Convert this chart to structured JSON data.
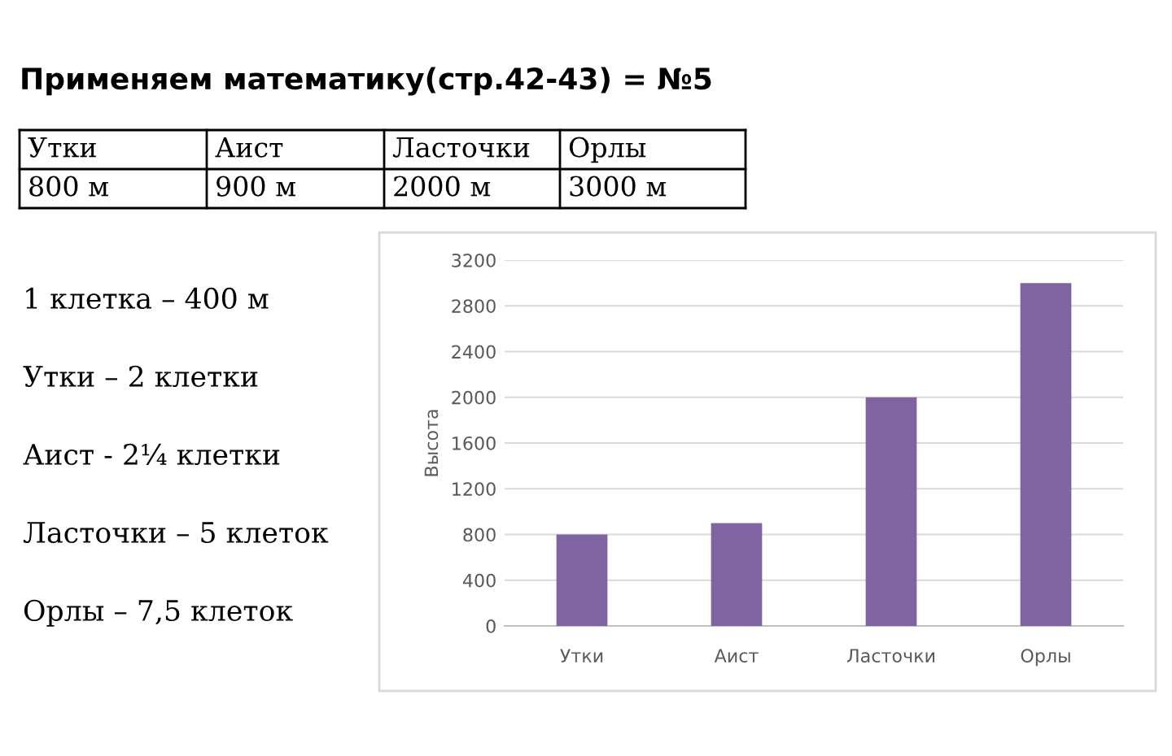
{
  "chart_data": {
    "type": "bar",
    "title": "Применяем математику(стр.42-43) = №5",
    "categories": [
      "Утки",
      "Аист",
      "Ласточки",
      "Орлы"
    ],
    "values": [
      800,
      900,
      2000,
      3000
    ],
    "color": "#8064a2",
    "ylabel": "Высота",
    "ylim": [
      0,
      3200
    ],
    "yticks": [
      0,
      400,
      800,
      1200,
      1600,
      2000,
      2400,
      2800,
      3200
    ],
    "grid": "y",
    "legend": false,
    "annotations": [
      "800 м",
      "900 м",
      "2000 м",
      "3000 м",
      "1 клетка – 400 м",
      "Утки – 2 клетки",
      "Аист - 2¼ клетки",
      "Ласточки – 5 клеток",
      "Орлы – 7,5 клеток"
    ]
  }
}
